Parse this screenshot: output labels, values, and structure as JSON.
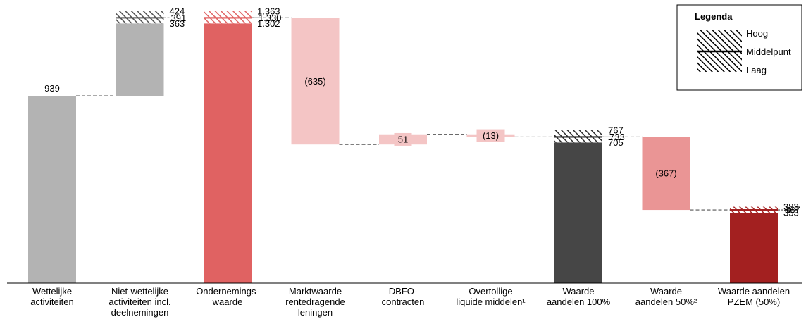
{
  "colors": {
    "grey": "#b3b3b3",
    "red": "#e06262",
    "light_pink": "#f4c5c5",
    "salmon": "#ea9595",
    "dark_grey": "#464646",
    "dark_red": "#a32020",
    "line": "#000000",
    "connector": "#555555"
  },
  "chart_data": {
    "type": "waterfall",
    "ylim": [
      0,
      1363
    ],
    "categories": [
      [
        "Wettelijke",
        "activiteiten"
      ],
      [
        "Niet-wettelijke",
        "activiteiten incl.",
        "deelnemingen"
      ],
      [
        "Ondernemings-",
        "waarde"
      ],
      [
        "Marktwaarde",
        "rentedragende",
        "leningen"
      ],
      [
        "DBFO-",
        "contracten"
      ],
      [
        "Overtollige",
        "liquide middelen¹"
      ],
      [
        "Waarde",
        "aandelen 100%"
      ],
      [
        "Waarde",
        "aandelen 50%²"
      ],
      [
        "Waarde aandelen",
        "PZEM (50%)"
      ]
    ],
    "bars": [
      {
        "kind": "total",
        "color": "grey",
        "value": 939,
        "label": "939"
      },
      {
        "kind": "range",
        "color": "grey",
        "hatch": "grey",
        "base": 939,
        "low": 363,
        "mid": 391,
        "high": 424,
        "labels": [
          "424",
          "391",
          "363"
        ]
      },
      {
        "kind": "range_total",
        "color": "red",
        "hatch": "red",
        "low": 1302,
        "mid": 1330,
        "high": 1363,
        "labels": [
          "1.363",
          "1.330",
          "1.302"
        ]
      },
      {
        "kind": "delta",
        "color": "light_pink",
        "from": 1330,
        "to": 695,
        "label": "(635)"
      },
      {
        "kind": "delta_small",
        "color": "light_pink",
        "from": 695,
        "to": 746,
        "label": "51"
      },
      {
        "kind": "delta_small",
        "color": "light_pink",
        "from": 746,
        "to": 733,
        "label": "(13)"
      },
      {
        "kind": "range_total",
        "color": "dark_grey",
        "hatch": "dark_grey",
        "low": 705,
        "mid": 733,
        "high": 767,
        "labels": [
          "767",
          "733",
          "705"
        ]
      },
      {
        "kind": "delta",
        "color": "salmon",
        "from": 733,
        "to": 367,
        "label": "(367)"
      },
      {
        "kind": "range_total",
        "color": "dark_red",
        "hatch": "dark_red",
        "low": 353,
        "mid": 367,
        "high": 383,
        "labels": [
          "383",
          "367",
          "353"
        ]
      }
    ],
    "legend": {
      "title": "Legenda",
      "items": [
        "Hoog",
        "Middelpunt",
        "Laag"
      ]
    }
  }
}
